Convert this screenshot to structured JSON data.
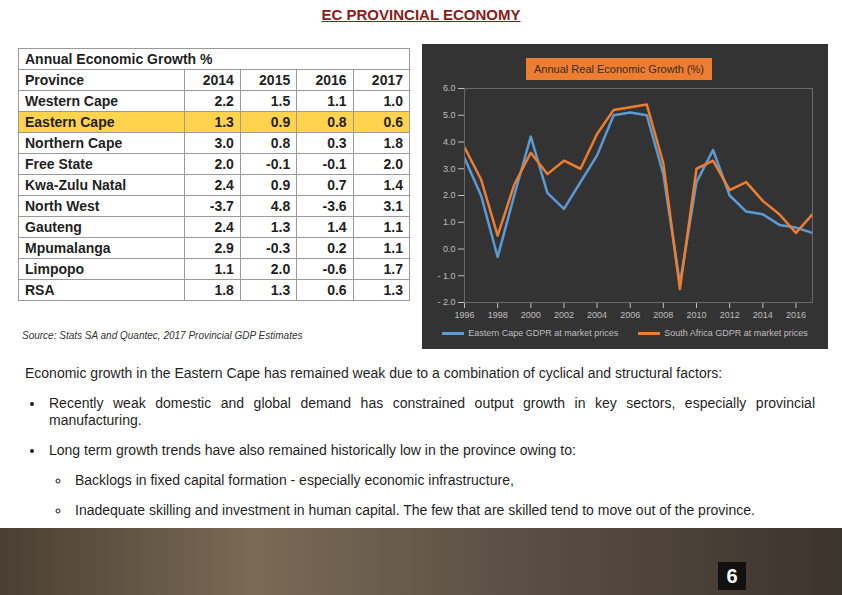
{
  "title": "EC PROVINCIAL ECONOMY",
  "table": {
    "header": "Annual Economic Growth %",
    "columns": [
      "Province",
      "2014",
      "2015",
      "2016",
      "2017"
    ],
    "rows": [
      [
        "Western Cape",
        "2.2",
        "1.5",
        "1.1",
        "1.0"
      ],
      [
        "Eastern Cape",
        "1.3",
        "0.9",
        "0.8",
        "0.6"
      ],
      [
        "Northern Cape",
        "3.0",
        "0.8",
        "0.3",
        "1.8"
      ],
      [
        "Free State",
        "2.0",
        "-0.1",
        "-0.1",
        "2.0"
      ],
      [
        "Kwa-Zulu Natal",
        "2.4",
        "0.9",
        "0.7",
        "1.4"
      ],
      [
        "North West",
        "-3.7",
        "4.8",
        "-3.6",
        "3.1"
      ],
      [
        "Gauteng",
        "2.4",
        "1.3",
        "1.4",
        "1.1"
      ],
      [
        "Mpumalanga",
        "2.9",
        "-0.3",
        "0.2",
        "1.1"
      ],
      [
        "Limpopo",
        "1.1",
        "2.0",
        "-0.6",
        "1.7"
      ],
      [
        "RSA",
        "1.8",
        "1.3",
        "0.6",
        "1.3"
      ]
    ],
    "highlight": "Eastern Cape"
  },
  "source": "Source:  Stats SA and Quantec, 2017 Provincial GDP Estimates",
  "chart_data": {
    "type": "line",
    "title": "Annual Real Economic Growth (%)",
    "x": [
      1996,
      1997,
      1998,
      1999,
      2000,
      2001,
      2002,
      2003,
      2004,
      2005,
      2006,
      2007,
      2008,
      2009,
      2010,
      2011,
      2012,
      2013,
      2014,
      2015,
      2016,
      2017
    ],
    "series": [
      {
        "name": "Eastern Cape GDPR at market prices",
        "color": "#5b9bd5",
        "values": [
          3.4,
          2.0,
          -0.3,
          2.0,
          4.2,
          2.1,
          1.5,
          2.5,
          3.5,
          5.0,
          5.1,
          5.0,
          2.8,
          -1.3,
          2.5,
          3.7,
          2.0,
          1.4,
          1.3,
          0.9,
          0.8,
          0.6
        ]
      },
      {
        "name": "South Africa GDPR at market prices",
        "color": "#ed7d31",
        "values": [
          3.8,
          2.6,
          0.5,
          2.4,
          3.6,
          2.8,
          3.3,
          3.0,
          4.3,
          5.2,
          5.3,
          5.4,
          3.2,
          -1.5,
          3.0,
          3.3,
          2.2,
          2.5,
          1.8,
          1.3,
          0.6,
          1.3
        ]
      }
    ],
    "xlim": [
      1996,
      2017
    ],
    "xticks": [
      1996,
      1998,
      2000,
      2002,
      2004,
      2006,
      2008,
      2010,
      2012,
      2014,
      2016
    ],
    "ylim": [
      -2,
      6
    ],
    "yticks": [
      {
        "value": -2,
        "label": "- 2.0"
      },
      {
        "value": -1,
        "label": "- 1.0"
      },
      {
        "value": 0,
        "label": "0.0"
      },
      {
        "value": 1,
        "label": "1.0"
      },
      {
        "value": 2,
        "label": "2.0"
      },
      {
        "value": 3,
        "label": "3.0"
      },
      {
        "value": 4,
        "label": "4.0"
      },
      {
        "value": 5,
        "label": "5.0"
      },
      {
        "value": 6,
        "label": "6.0"
      }
    ],
    "grid": false,
    "legend": "bottom"
  },
  "text": {
    "intro": "Economic growth in the Eastern Cape has remained weak due to a combination of cyclical and structural factors:",
    "bullets": [
      {
        "text": "Recently weak domestic and global demand has constrained output growth in key sectors, especially provincial manufacturing.",
        "sub": []
      },
      {
        "text": "Long term growth trends have also remained historically low in the province owing to:",
        "sub": [
          "Backlogs in fixed capital formation  - especially economic infrastructure,",
          "Inadequate skilling and investment in human capital. The few that are skilled tend to move out of the province."
        ]
      }
    ]
  },
  "page_number": "6"
}
